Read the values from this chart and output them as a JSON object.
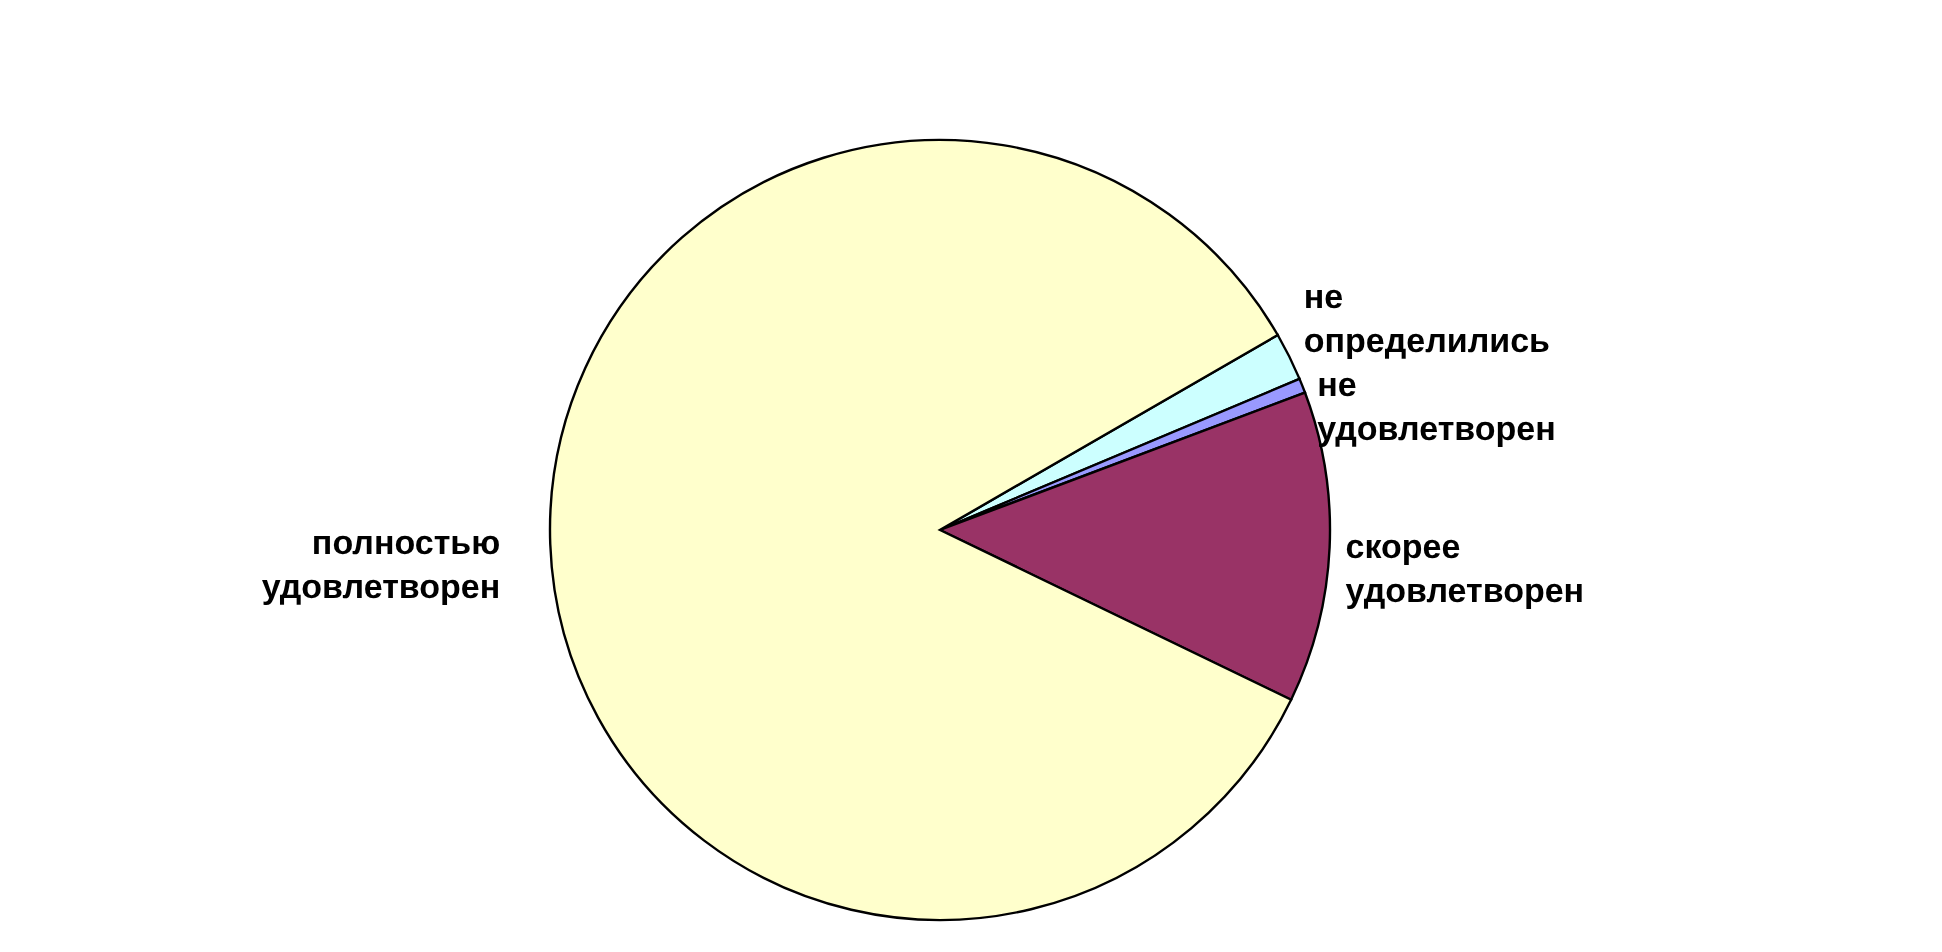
{
  "chart_data": {
    "type": "pie",
    "categories": [
      "не определились",
      "не удовлетворен",
      "скорее удовлетворен",
      "полностью удовлетворен"
    ],
    "values": [
      2.0,
      0.6,
      12.9,
      84.5
    ],
    "colors": [
      "#ccffff",
      "#9999ff",
      "#993366",
      "#ffffcc"
    ]
  }
}
